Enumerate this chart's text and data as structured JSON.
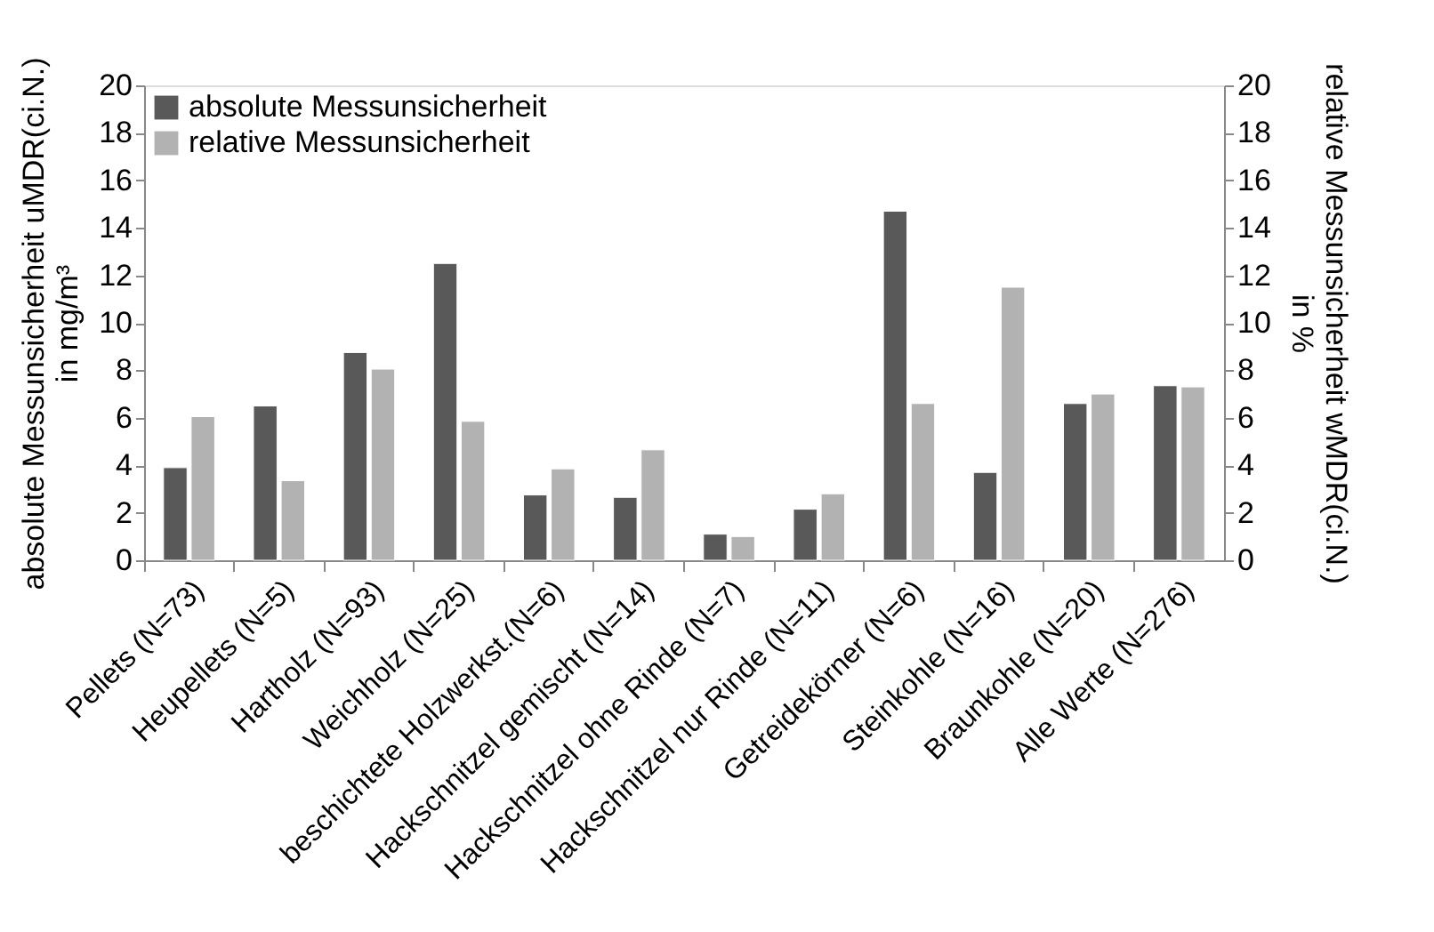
{
  "chart_data": {
    "type": "bar",
    "categories": [
      "Pellets (N=73)",
      "Heupellets (N=5)",
      "Hartholz (N=93)",
      "Weichholz (N=25)",
      "beschichtete Holzwerkst.(N=6)",
      "Hackschnitzel gemischt (N=14)",
      "Hackschnitzel ohne Rinde (N=7)",
      "Hackschnitzel nur Rinde (N=11)",
      "Getreidekörner (N=6)",
      "Steinkohle (N=16)",
      "Braunkohle (N=20)",
      "Alle Werte (N=276)"
    ],
    "series": [
      {
        "name": "absolute Messunsicherheit",
        "color": "#595959",
        "values": [
          3.9,
          6.5,
          8.75,
          12.5,
          2.75,
          2.65,
          1.1,
          2.15,
          14.7,
          3.7,
          6.6,
          7.35
        ]
      },
      {
        "name": "relative Messunsicherheit",
        "color": "#b2b2b2",
        "axis": "y2",
        "values": [
          6.05,
          3.35,
          8.05,
          5.85,
          3.85,
          4.65,
          1.0,
          2.8,
          6.6,
          11.5,
          7.0,
          7.3
        ]
      }
    ],
    "ylabel": "absolute Messunsicherheit uMDR(ci.N.)\nin mg/m³",
    "y2label": "relative Messunsicherheit wMDR(ci.N.)\nin %",
    "ylim": [
      0,
      20
    ],
    "yticks": [
      0,
      2,
      4,
      6,
      8,
      10,
      12,
      14,
      16,
      18,
      20
    ],
    "y2lim": [
      0,
      20
    ],
    "y2ticks": [
      0,
      2,
      4,
      6,
      8,
      10,
      12,
      14,
      16,
      18,
      20
    ],
    "grid": false,
    "legend": "top left"
  }
}
